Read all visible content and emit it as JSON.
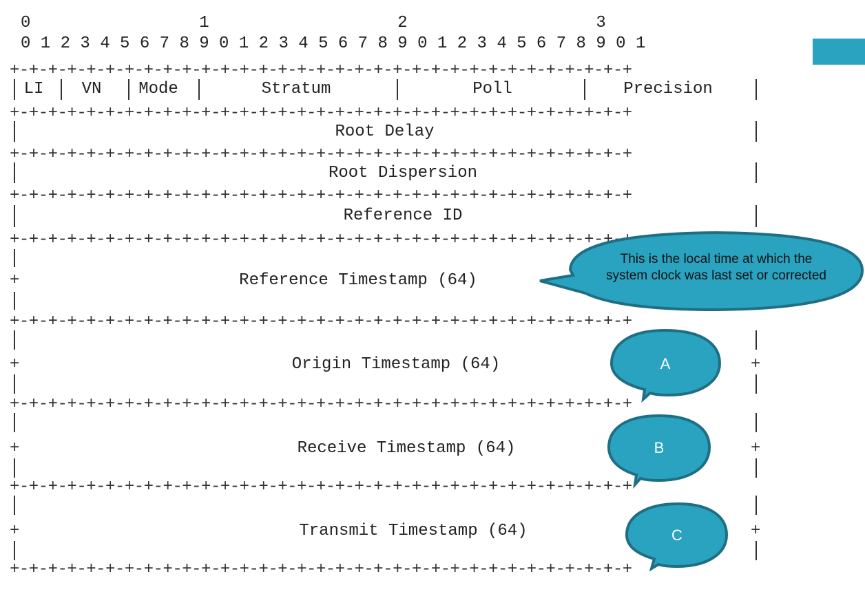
{
  "ruler": {
    "tens": "0                 1                   2                   3",
    "units": "0 1 2 3 4 5 6 7 8 9 0 1 2 3 4 5 6 7 8 9 0 1 2 3 4 5 6 7 8 9 0 1"
  },
  "separator": "+-+-+-+-+-+-+-+-+-+-+-+-+-+-+-+-+-+-+-+-+-+-+-+-+-+-+-+-+-+-+-+-+",
  "row1": {
    "li": "LI",
    "vn": "VN",
    "mode": "Mode",
    "stratum": "Stratum",
    "poll": "Poll",
    "precision": "Precision"
  },
  "fields": {
    "root_delay": "Root Delay",
    "root_dispersion": "Root Dispersion",
    "reference_id": "Reference ID",
    "reference_timestamp": "Reference Timestamp (64)",
    "origin_timestamp": "Origin Timestamp (64)",
    "receive_timestamp": "Receive Timestamp (64)",
    "transmit_timestamp": "Transmit Timestamp (64)"
  },
  "callouts": {
    "reference_note": "This is the local time at which the system clock was last set or corrected",
    "a": "A",
    "b": "B",
    "c": "C"
  },
  "colors": {
    "callout_fill": "#2aa3c0",
    "callout_stroke": "#1f6f84",
    "line": "#333333"
  }
}
